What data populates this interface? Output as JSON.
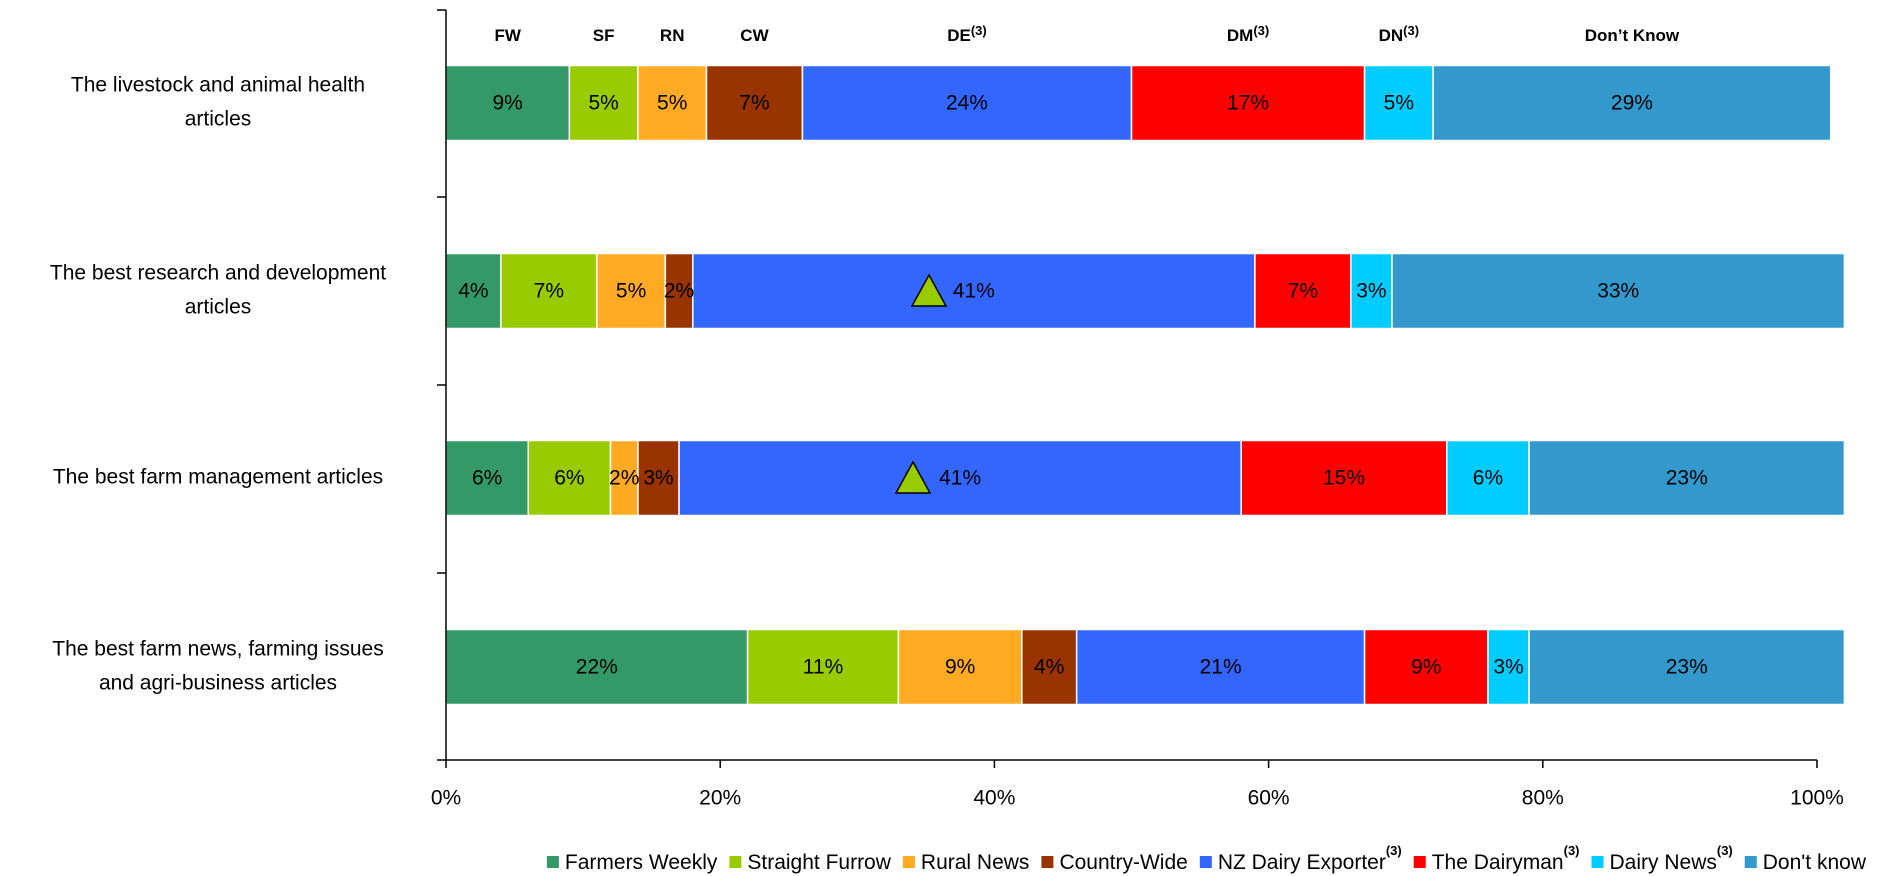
{
  "chart_data": {
    "type": "stacked-bar-horizontal",
    "categories": [
      [
        "The livestock and animal health",
        "articles"
      ],
      [
        "The best research and development",
        "articles"
      ],
      [
        "The best farm management articles"
      ],
      [
        "The best farm news, farming issues",
        "and agri-business articles"
      ]
    ],
    "series": [
      {
        "name": "Farmers Weekly",
        "abbreviation": "FW",
        "color": "#339966",
        "values": [
          9,
          4,
          6,
          22
        ],
        "value_labels": [
          "9%",
          "4%",
          "6%",
          "22%"
        ]
      },
      {
        "name": "Straight Furrow",
        "abbreviation": "SF",
        "color": "#99cc00",
        "values": [
          5,
          7,
          6,
          11
        ],
        "value_labels": [
          "5%",
          "7%",
          "6%",
          "11%"
        ]
      },
      {
        "name": "Rural News",
        "abbreviation": "RN",
        "color": "#ffaa22",
        "values": [
          5,
          5,
          2,
          9
        ],
        "value_labels": [
          "5%",
          "5%",
          "2%",
          "9%"
        ]
      },
      {
        "name": "Country-Wide",
        "abbreviation": "CW",
        "color": "#993300",
        "values": [
          7,
          2,
          3,
          4
        ],
        "value_labels": [
          "7%",
          "2%",
          "3%",
          "4%"
        ]
      },
      {
        "name": "NZ Dairy Exporter",
        "note": "(3)",
        "abbreviation": "DE",
        "color": "#3366ff",
        "values": [
          24,
          41,
          41,
          21
        ],
        "value_labels": [
          "24%",
          "41%",
          "41%",
          "21%"
        ]
      },
      {
        "name": "The Dairyman",
        "note": "(3)",
        "abbreviation": "DM",
        "color": "#ff0000",
        "values": [
          17,
          7,
          15,
          9
        ],
        "value_labels": [
          "17%",
          "7%",
          "15%",
          "9%"
        ]
      },
      {
        "name": "Dairy News",
        "note": "(3)",
        "abbreviation": "DN",
        "color": "#00ccff",
        "values": [
          5,
          3,
          6,
          3
        ],
        "value_labels": [
          "5%",
          "3%",
          "6%",
          "3%"
        ]
      },
      {
        "name": "Don't know",
        "abbreviation": "Don’t Know",
        "color": "#3399cc",
        "values": [
          29,
          33,
          23,
          23
        ],
        "value_labels": [
          "29%",
          "33%",
          "23%",
          "23%"
        ]
      }
    ],
    "xlim": [
      0,
      100
    ],
    "xticks": [
      {
        "value": 0,
        "label": "0%"
      },
      {
        "value": 20,
        "label": "20%"
      },
      {
        "value": 40,
        "label": "40%"
      },
      {
        "value": 60,
        "label": "60%"
      },
      {
        "value": 80,
        "label": "80%"
      },
      {
        "value": 100,
        "label": "100%"
      }
    ],
    "legend": "bottom"
  }
}
